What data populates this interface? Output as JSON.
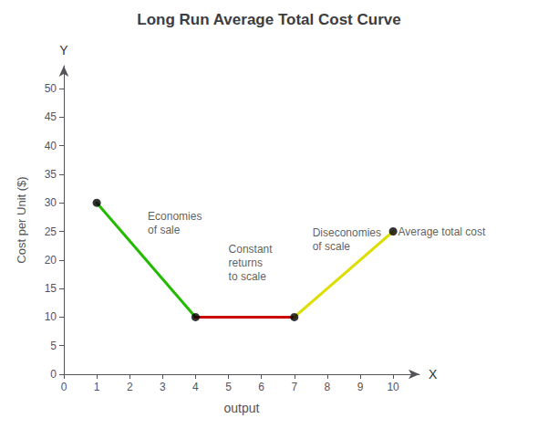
{
  "chart_data": {
    "type": "line",
    "title": "Long Run Average Total Cost Curve",
    "xlabel": "output",
    "ylabel": "Cost per Unit ($)",
    "x_axis_label": "X",
    "y_axis_label": "Y",
    "xlim": [
      0,
      10.8
    ],
    "ylim": [
      0,
      54
    ],
    "xticks": [
      0,
      1,
      2,
      3,
      4,
      5,
      6,
      7,
      8,
      9,
      10
    ],
    "yticks": [
      0,
      5,
      10,
      15,
      20,
      25,
      30,
      35,
      40,
      45,
      50
    ],
    "grid": false,
    "series": [
      {
        "type": "line",
        "marker": "none",
        "color": "#22bb00",
        "x": [
          1,
          4
        ],
        "values": [
          30,
          10
        ]
      },
      {
        "type": "line",
        "marker": "none",
        "color": "#cc0000",
        "x": [
          4,
          7
        ],
        "values": [
          10,
          10
        ]
      },
      {
        "type": "line",
        "marker": "none",
        "color": "#dddd00",
        "x": [
          7,
          10
        ],
        "values": [
          10,
          25
        ]
      },
      {
        "type": "scatter",
        "marker": "circle",
        "color": "#000000",
        "x": [
          1,
          4,
          7,
          10
        ],
        "values": [
          30,
          10,
          10,
          25
        ]
      }
    ],
    "annotations": [
      {
        "text": "Economies\nof sale",
        "x": 2.55,
        "y": 26.5
      },
      {
        "text": "Constant\nreturns\nto scale",
        "x": 5.0,
        "y": 19.5
      },
      {
        "text": "Diseconomies\nof scale",
        "x": 7.55,
        "y": 23.5
      },
      {
        "text": "Average total cost",
        "x": 10.15,
        "y": 25.0
      }
    ]
  }
}
